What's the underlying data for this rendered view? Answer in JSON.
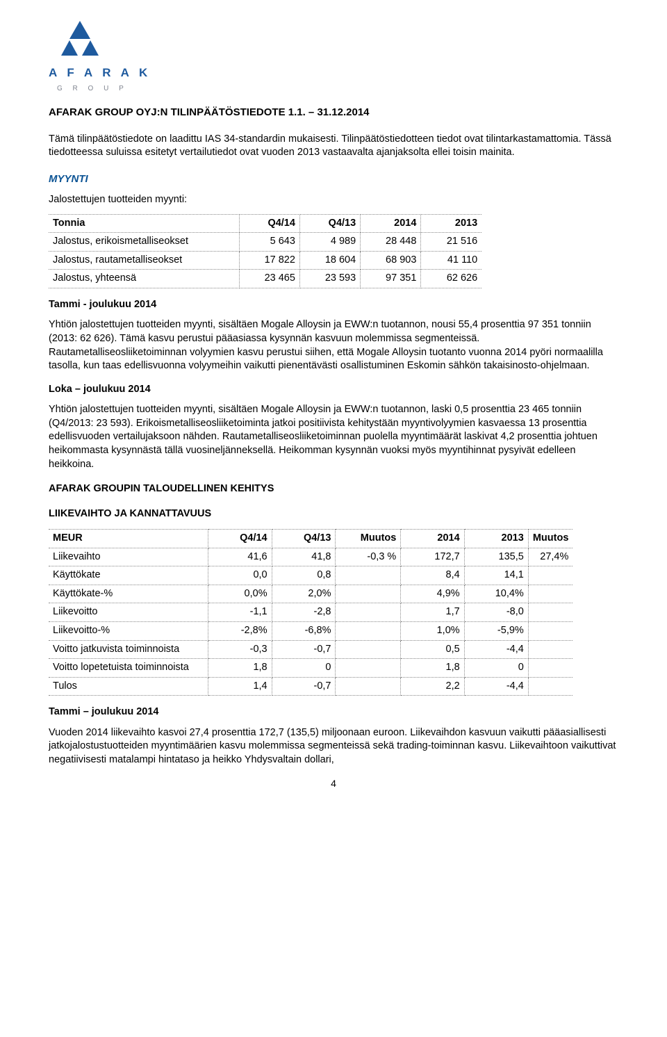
{
  "logo": {
    "brand": "A F A R A K",
    "sub": "G    R    O    U    P",
    "mark_color": "#1e5a9e",
    "grey": "#808590"
  },
  "doc": {
    "title": "AFARAK GROUP OYJ:N TILINPÄÄTÖSTIEDOTE 1.1. – 31.12.2014",
    "intro": "Tämä tilinpäätöstiedote on laadittu IAS 34-standardin mukaisesti. Tilinpäätöstiedotteen tiedot ovat tilintarkastamattomia. Tässä tiedotteessa suluissa esitetyt vertailutiedot ovat vuoden 2013 vastaavalta ajanjaksolta ellei toisin mainita."
  },
  "myynti": {
    "heading": "MYYNTI",
    "subheading": "Jalostettujen tuotteiden myynti:",
    "table": {
      "type": "table",
      "columns": [
        "Tonnia",
        "Q4/14",
        "Q4/13",
        "2014",
        "2013"
      ],
      "rows": [
        [
          "Jalostus, erikoismetalliseokset",
          "5 643",
          "4 989",
          "28 448",
          "21 516"
        ],
        [
          "Jalostus, rautametalliseokset",
          "17 822",
          "18 604",
          "68 903",
          "41 110"
        ],
        [
          "Jalostus, yhteensä",
          "23 465",
          "23 593",
          "97 351",
          "62 626"
        ]
      ],
      "border_color": "#888888",
      "fontsize": 14.5
    },
    "period1_title": "Tammi - joulukuu 2014",
    "period1_body": "Yhtiön jalostettujen tuotteiden myynti, sisältäen Mogale Alloysin ja EWW:n tuotannon, nousi 55,4 prosenttia 97 351 tonniin (2013: 62 626). Tämä kasvu perustui pääasiassa kysynnän kasvuun molemmissa segmenteissä. Rautametalliseosliiketoiminnan volyymien kasvu perustui siihen, että Mogale Alloysin tuotanto vuonna 2014 pyöri normaalilla tasolla, kun taas edellisvuonna volyymeihin vaikutti pienentävästi osallistuminen Eskomin sähkön takaisinosto-ohjelmaan.",
    "period2_title": "Loka – joulukuu 2014",
    "period2_body": "Yhtiön jalostettujen tuotteiden myynti, sisältäen Mogale Alloysin ja EWW:n tuotannon, laski 0,5 prosenttia 23 465 tonniin (Q4/2013: 23 593). Erikoismetalliseosliiketoiminta jatkoi positiivista kehitystään myyntivolyymien kasvaessa 13 prosenttia edellisvuoden vertailujaksoon nähden. Rautametalliseosliiketoiminnan puolella myyntimäärät laskivat 4,2 prosenttia johtuen heikommasta kysynnästä tällä vuosineljänneksellä. Heikomman kysynnän vuoksi myös myyntihinnat pysyivät edelleen heikkoina."
  },
  "fin": {
    "heading": "AFARAK GROUPIN TALOUDELLINEN KEHITYS",
    "subheading": "LIIKEVAIHTO JA KANNATTAVUUS",
    "table": {
      "type": "table",
      "columns": [
        "MEUR",
        "Q4/14",
        "Q4/13",
        "Muutos",
        "2014",
        "2013",
        "Muutos"
      ],
      "rows": [
        [
          "Liikevaihto",
          "41,6",
          "41,8",
          "-0,3 %",
          "172,7",
          "135,5",
          "27,4%"
        ],
        [
          "Käyttökate",
          "0,0",
          "0,8",
          "",
          "8,4",
          "14,1",
          ""
        ],
        [
          "Käyttökate-%",
          "0,0%",
          "2,0%",
          "",
          "4,9%",
          "10,4%",
          ""
        ],
        [
          "Liikevoitto",
          "-1,1",
          "-2,8",
          "",
          "1,7",
          "-8,0",
          ""
        ],
        [
          "Liikevoitto-%",
          "-2,8%",
          "-6,8%",
          "",
          "1,0%",
          "-5,9%",
          ""
        ],
        [
          "Voitto jatkuvista toiminnoista",
          "-0,3",
          "-0,7",
          "",
          "0,5",
          "-4,4",
          ""
        ],
        [
          "Voitto lopetetuista toiminnoista",
          "1,8",
          "0",
          "",
          "1,8",
          "0",
          ""
        ],
        [
          "Tulos",
          "1,4",
          "-0,7",
          "",
          "2,2",
          "-4,4",
          ""
        ]
      ],
      "border_color": "#888888",
      "fontsize": 14.5
    },
    "period1_title": "Tammi – joulukuu 2014",
    "period1_body": "Vuoden 2014 liikevaihto kasvoi 27,4 prosenttia 172,7 (135,5) miljoonaan euroon. Liikevaihdon kasvuun vaikutti pääasiallisesti jatkojalostustuotteiden myyntimäärien kasvu molemmissa segmenteissä sekä trading-toiminnan kasvu. Liikevaihtoon vaikuttivat negatiivisesti matalampi hintataso ja heikko Yhdysvaltain dollari,"
  },
  "page_number": "4",
  "colors": {
    "background": "#ffffff",
    "text": "#000000",
    "section_blue": "#0b5394"
  }
}
